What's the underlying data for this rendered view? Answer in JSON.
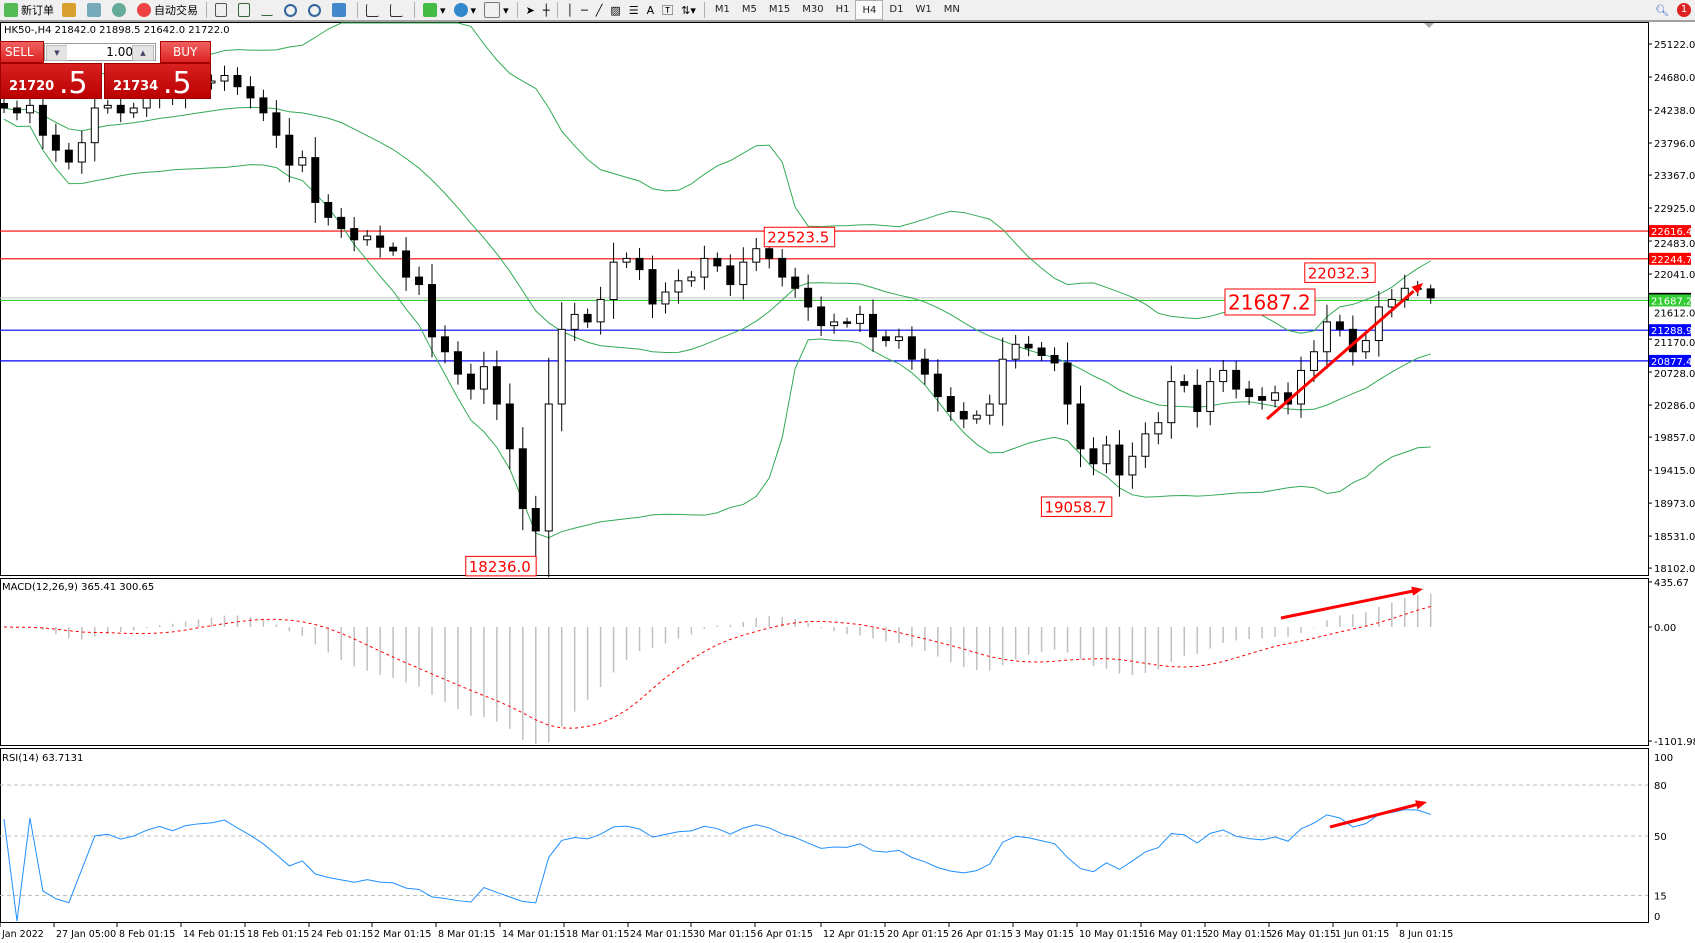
{
  "toolbar": {
    "new_order": "新订单",
    "auto_trading": "自动交易",
    "timeframes": [
      "M1",
      "M5",
      "M15",
      "M30",
      "H1",
      "H4",
      "D1",
      "W1",
      "MN"
    ],
    "active_timeframe": "H4",
    "notification_count": "1"
  },
  "chart_info": "HK50-,H4  21842.0 21898.5 21642.0 21722.0",
  "trade_panel": {
    "sell_label": "SELL",
    "buy_label": "BUY",
    "lots": "1.00",
    "sell_big": "21720",
    "sell_small": ".5",
    "buy_big": "21734",
    "buy_small": ".5"
  },
  "colors": {
    "bull": "#ffffff",
    "bear": "#000000",
    "bands": "#33aa55",
    "red_line": "#ff0000",
    "blue_line": "#0000ff",
    "green_line": "#33cc33",
    "macd_hist": "#c0c0c0",
    "macd_signal": "#ff0000",
    "rsi": "#1e90ff"
  },
  "price_axis": [
    "25122.0",
    "24680.0",
    "24238.0",
    "23796.0",
    "23367.0",
    "22925.0",
    "22483.0",
    "22041.0",
    "21612.0",
    "21170.0",
    "20728.0",
    "20286.0",
    "19857.0",
    "19415.0",
    "18973.0",
    "18531.0",
    "18102.0"
  ],
  "hlines": [
    {
      "price": 22616.4,
      "label": "22616.4",
      "color": "#ff0000"
    },
    {
      "price": 22244.7,
      "label": "22244.7",
      "color": "#ff0000"
    },
    {
      "price": 21687.2,
      "label": "21687.2",
      "color": "#33cc33"
    },
    {
      "price": 21288.9,
      "label": "21288.9",
      "color": "#0000ff"
    },
    {
      "price": 20877.4,
      "label": "20877.4",
      "color": "#0000ff"
    }
  ],
  "annotations": [
    {
      "text": "22523.5",
      "price": 22523.5,
      "candle": 58
    },
    {
      "text": "22032.3",
      "price": 22032.3,
      "candle": 108
    },
    {
      "text": "21687.2",
      "price": 21687.2,
      "candle": 94,
      "big": true
    },
    {
      "text": "19058.7",
      "price": 19058.7,
      "candle": 86
    },
    {
      "text": "18236.0",
      "price": 18236.0,
      "candle": 41
    }
  ],
  "macd": {
    "label": "MACD(12,26,9) 365.41 300.65",
    "axis": [
      "435.67",
      "0.00",
      "-1101.98"
    ]
  },
  "rsi": {
    "label": "RSI(14) 63.7131",
    "axis": [
      "100",
      "80",
      "50",
      "15",
      "0"
    ]
  },
  "time_axis": [
    "Jan 2022",
    "27 Jan 05:00",
    "8 Feb 01:15",
    "14 Feb 01:15",
    "18 Feb 01:15",
    "24 Feb 01:15",
    "2 Mar 01:15",
    "8 Mar 01:15",
    "14 Mar 01:15",
    "18 Mar 01:15",
    "24 Mar 01:15",
    "30 Mar 01:15",
    "6 Apr 01:15",
    "12 Apr 01:15",
    "20 Apr 01:15",
    "26 Apr 01:15",
    "3 May 01:15",
    "10 May 01:15",
    "16 May 01:15",
    "20 May 01:15",
    "26 May 01:15",
    "1 Jun 01:15",
    "8 Jun 01:15"
  ],
  "chart_data": {
    "type": "candlestick",
    "symbol": "HK50-",
    "timeframe": "H4",
    "ylim": [
      18102.0,
      25122.0
    ],
    "last_candle": {
      "open": 21842.0,
      "high": 21898.5,
      "low": 21642.0,
      "close": 21722.0
    },
    "close": [
      24265,
      24200,
      24300,
      23900,
      23700,
      23541,
      23800,
      24265,
      24300,
      24200,
      24265,
      24400,
      24500,
      24400,
      24550,
      24600,
      24626,
      24700,
      24550,
      24400,
      24200,
      23900,
      23500,
      23600,
      23000,
      22800,
      22650,
      22500,
      22550,
      22400,
      22350,
      22000,
      21900,
      21200,
      21000,
      20700,
      20500,
      20800,
      20300,
      19700,
      18900,
      18600,
      20300,
      21300,
      21500,
      21400,
      21700,
      22200,
      22250,
      22100,
      21640,
      21800,
      21950,
      22000,
      22250,
      22150,
      21900,
      22200,
      22380,
      22250,
      22000,
      21850,
      21600,
      21350,
      21400,
      21380,
      21500,
      21200,
      21150,
      21200,
      20900,
      20700,
      20400,
      20200,
      20100,
      20150,
      20300,
      20900,
      21100,
      21050,
      20950,
      20850,
      20300,
      19700,
      19500,
      19750,
      19350,
      19600,
      19900,
      20050,
      20600,
      20550,
      20200,
      20600,
      20750,
      20500,
      20400,
      20350,
      20450,
      20300,
      20750,
      21000,
      21400,
      21300,
      21000,
      21150,
      21600,
      21700,
      21850,
      21842,
      21722
    ]
  }
}
